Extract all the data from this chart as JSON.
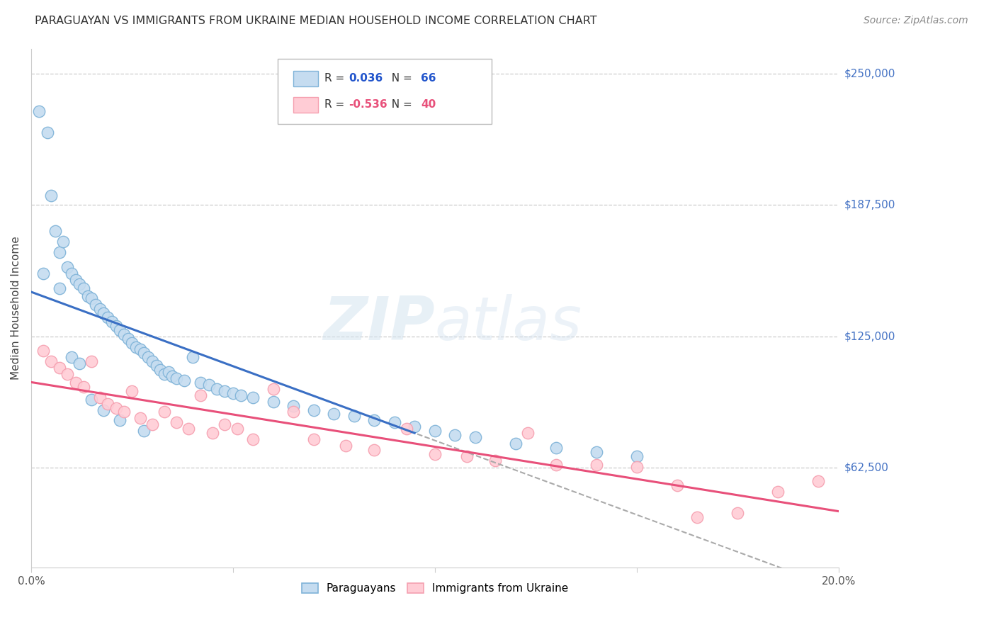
{
  "title": "PARAGUAYAN VS IMMIGRANTS FROM UKRAINE MEDIAN HOUSEHOLD INCOME CORRELATION CHART",
  "source": "Source: ZipAtlas.com",
  "ylabel": "Median Household Income",
  "ytick_vals": [
    62500,
    125000,
    187500,
    250000
  ],
  "ytick_labels": [
    "$62,500",
    "$125,000",
    "$187,500",
    "$250,000"
  ],
  "xmin": 0.0,
  "xmax": 0.2,
  "ymin": 15000,
  "ymax": 262000,
  "legend_blue_r": "0.036",
  "legend_blue_n": "66",
  "legend_pink_r": "-0.536",
  "legend_pink_n": "40",
  "blue_fill": "#C5DCF0",
  "blue_edge": "#7FB3D8",
  "pink_fill": "#FFCCD5",
  "pink_edge": "#F5A0B0",
  "blue_line": "#3A6FC4",
  "pink_line": "#E8507A",
  "grid_color": "#CCCCCC",
  "right_label_color": "#4472C4",
  "blue_r_color": "#2255CC",
  "pink_r_color": "#E8507A",
  "blue_scatter_x": [
    0.002,
    0.004,
    0.005,
    0.006,
    0.007,
    0.008,
    0.009,
    0.01,
    0.011,
    0.012,
    0.013,
    0.014,
    0.015,
    0.016,
    0.017,
    0.018,
    0.019,
    0.02,
    0.021,
    0.022,
    0.023,
    0.024,
    0.025,
    0.026,
    0.027,
    0.028,
    0.029,
    0.03,
    0.031,
    0.032,
    0.033,
    0.034,
    0.035,
    0.036,
    0.038,
    0.04,
    0.042,
    0.044,
    0.046,
    0.048,
    0.05,
    0.052,
    0.055,
    0.06,
    0.065,
    0.07,
    0.075,
    0.08,
    0.085,
    0.09,
    0.095,
    0.1,
    0.105,
    0.11,
    0.12,
    0.13,
    0.14,
    0.15,
    0.003,
    0.007,
    0.01,
    0.012,
    0.015,
    0.018,
    0.022,
    0.028
  ],
  "blue_scatter_y": [
    232000,
    222000,
    192000,
    175000,
    165000,
    170000,
    158000,
    155000,
    152000,
    150000,
    148000,
    144000,
    143000,
    140000,
    138000,
    136000,
    134000,
    132000,
    130000,
    128000,
    126000,
    124000,
    122000,
    120000,
    119000,
    117000,
    115000,
    113000,
    111000,
    109000,
    107000,
    108000,
    106000,
    105000,
    104000,
    115000,
    103000,
    102000,
    100000,
    99000,
    98000,
    97000,
    96000,
    94000,
    92000,
    90000,
    88000,
    87000,
    85000,
    84000,
    82000,
    80000,
    78000,
    77000,
    74000,
    72000,
    70000,
    68000,
    155000,
    148000,
    115000,
    112000,
    95000,
    90000,
    85000,
    80000
  ],
  "pink_scatter_x": [
    0.003,
    0.005,
    0.007,
    0.009,
    0.011,
    0.013,
    0.015,
    0.017,
    0.019,
    0.021,
    0.023,
    0.025,
    0.027,
    0.03,
    0.033,
    0.036,
    0.039,
    0.042,
    0.045,
    0.048,
    0.051,
    0.055,
    0.06,
    0.065,
    0.07,
    0.078,
    0.085,
    0.093,
    0.1,
    0.108,
    0.115,
    0.123,
    0.13,
    0.14,
    0.15,
    0.16,
    0.165,
    0.175,
    0.185,
    0.195
  ],
  "pink_scatter_y": [
    118000,
    113000,
    110000,
    107000,
    103000,
    101000,
    113000,
    96000,
    93000,
    91000,
    89000,
    99000,
    86000,
    83000,
    89000,
    84000,
    81000,
    97000,
    79000,
    83000,
    81000,
    76000,
    100000,
    89000,
    76000,
    73000,
    71000,
    81000,
    69000,
    68000,
    66000,
    79000,
    64000,
    64000,
    63000,
    54000,
    39000,
    41000,
    51000,
    56000
  ]
}
